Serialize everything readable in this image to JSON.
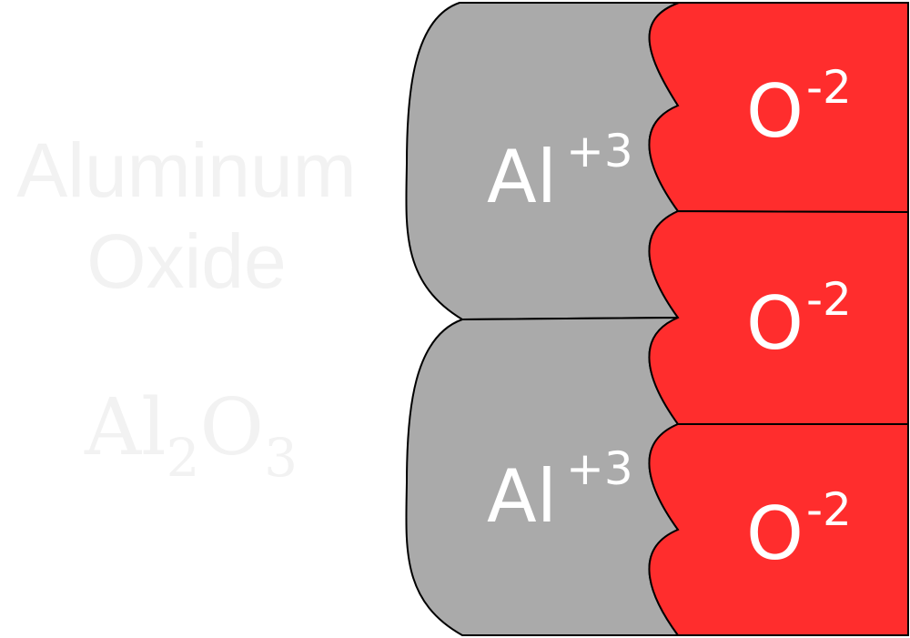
{
  "compound": {
    "name_line1": "Aluminum",
    "name_line2": "Oxide",
    "formula": {
      "el1": "Al",
      "sub1": "2",
      "el2": "O",
      "sub2": "3"
    }
  },
  "ions": {
    "aluminum": [
      {
        "symbol": "Al",
        "charge": "+3"
      },
      {
        "symbol": "Al",
        "charge": "+3"
      }
    ],
    "oxygen": [
      {
        "symbol": "O",
        "charge": "-2"
      },
      {
        "symbol": "O",
        "charge": "-2"
      },
      {
        "symbol": "O",
        "charge": "-2"
      }
    ]
  },
  "colors": {
    "aluminum": "#aaaaaa",
    "oxygen": "#ff2d2d",
    "outline": "#000000",
    "label": "#ffffff",
    "watermark": "#f2f2f2"
  }
}
